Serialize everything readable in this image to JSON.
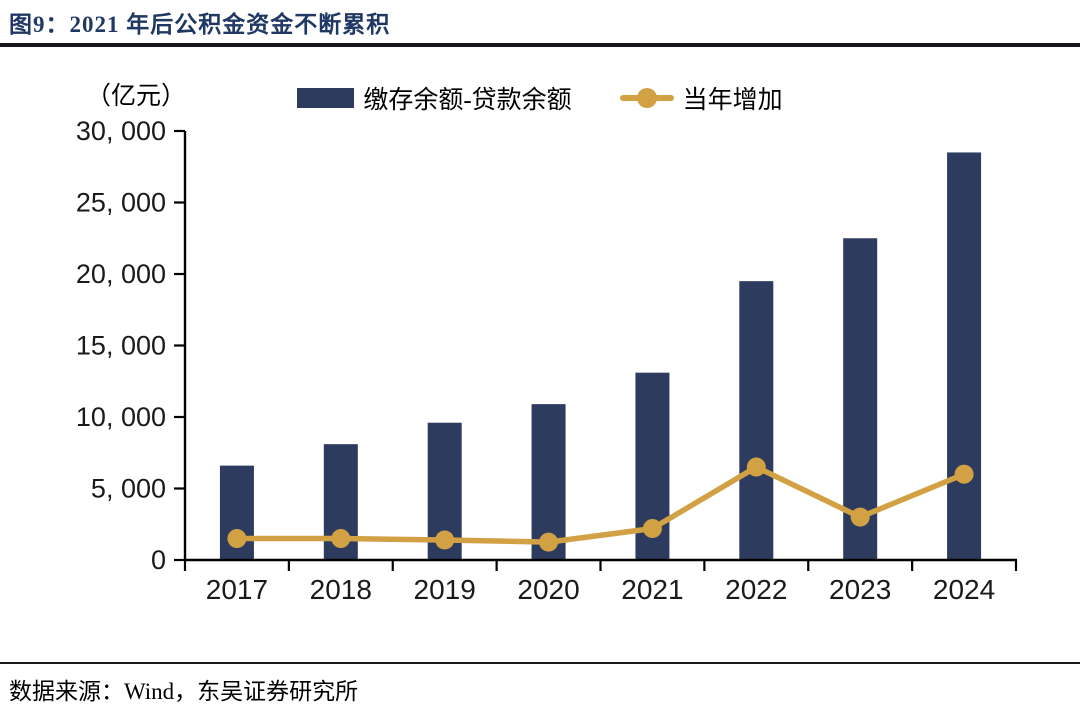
{
  "header": {
    "title": "图9：2021 年后公积金资金不断累积"
  },
  "chart_data": {
    "type": "bar",
    "title": "图9：2021 年后公积金资金不断累积",
    "xlabel": "",
    "ylabel": "（亿元）",
    "categories": [
      "2017",
      "2018",
      "2019",
      "2020",
      "2021",
      "2022",
      "2023",
      "2024"
    ],
    "series": [
      {
        "name": "缴存余额-贷款余额",
        "type": "bar",
        "color": "#2d3c5e",
        "values": [
          6600,
          8100,
          9600,
          10900,
          13100,
          19500,
          22500,
          28500
        ]
      },
      {
        "name": "当年增加",
        "type": "line",
        "color": "#d2a144",
        "values": [
          1500,
          1500,
          1400,
          1250,
          2200,
          6500,
          3000,
          6000
        ]
      }
    ],
    "ylim": [
      0,
      30000
    ],
    "ytick_step": 5000,
    "ytick_labels": [
      "0",
      "5, 000",
      "10, 000",
      "15, 000",
      "20, 000",
      "25, 000",
      "30, 000"
    ],
    "grid": false,
    "legend_position": "top"
  },
  "footer": {
    "source": "数据来源：Wind，东吴证券研究所"
  }
}
